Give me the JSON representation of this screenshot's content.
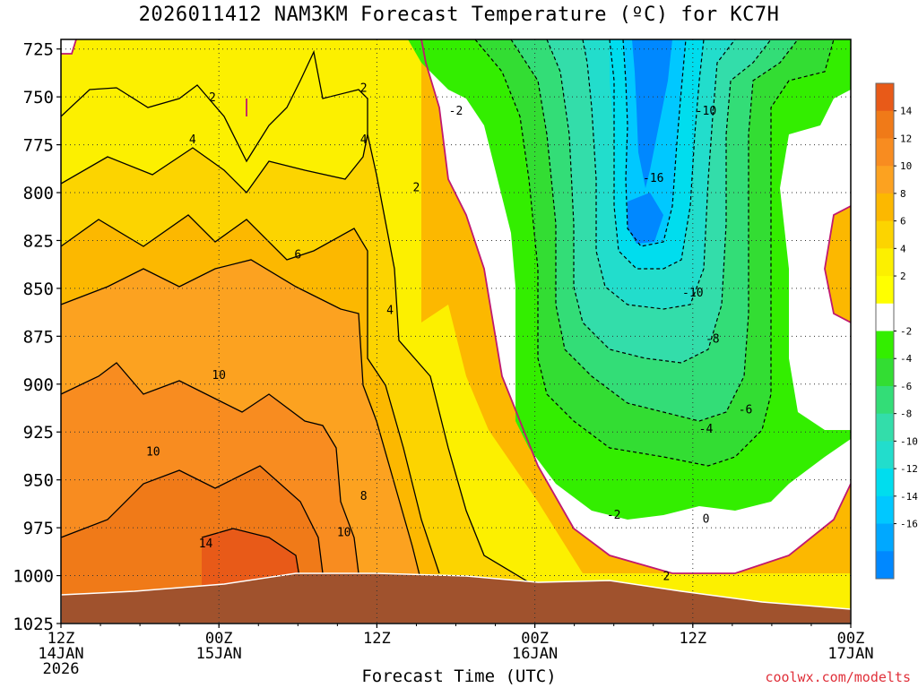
{
  "chart_data": {
    "type": "heatmap",
    "title": "2026011412 NAM3KM Forecast Temperature (ºC) for KC7H",
    "xlabel": "Forecast Time (UTC)",
    "credit": "coolwx.com/modelts",
    "y_ticks": [
      "725",
      "750",
      "775",
      "800",
      "825",
      "850",
      "875",
      "900",
      "925",
      "950",
      "975",
      "1000",
      "1025"
    ],
    "x_ticks": [
      {
        "l1": "12Z",
        "l2": "14JAN",
        "l3": "2026"
      },
      {
        "l1": "00Z",
        "l2": "15JAN",
        "l3": ""
      },
      {
        "l1": "12Z",
        "l2": "",
        "l3": ""
      },
      {
        "l1": "00Z",
        "l2": "16JAN",
        "l3": ""
      },
      {
        "l1": "12Z",
        "l2": "",
        "l3": ""
      },
      {
        "l1": "00Z",
        "l2": "17JAN",
        "l3": ""
      }
    ],
    "x_range_hours": [
      0,
      60
    ],
    "y_range_hPa": [
      720,
      1025
    ],
    "colorbar": {
      "labels": [
        "14",
        "12",
        "10",
        "8",
        "6",
        "4",
        "2",
        "-2",
        "-4",
        "-6",
        "-8",
        "-10",
        "-12",
        "-14",
        "-16"
      ],
      "colors": [
        "#e85a18",
        "#f07a18",
        "#f88c20",
        "#fca220",
        "#fcb800",
        "#fcd400",
        "#fcf000",
        "#ffff00",
        "#ffffff",
        "#33ee00",
        "#33dd33",
        "#33dd77",
        "#33ddaa",
        "#22ddcc",
        "#00ddee",
        "#00c8ff",
        "#00a8ff",
        "#0088ff"
      ]
    },
    "contour_labels": [
      {
        "t": "2",
        "h": 11.5,
        "p": 750
      },
      {
        "t": "2",
        "h": 23.0,
        "p": 745
      },
      {
        "t": "4",
        "h": 10.0,
        "p": 772
      },
      {
        "t": "4",
        "h": 23.0,
        "p": 772
      },
      {
        "t": "-2",
        "h": 30.0,
        "p": 757
      },
      {
        "t": "2",
        "h": 27.0,
        "p": 797
      },
      {
        "t": "6",
        "h": 18.0,
        "p": 832
      },
      {
        "t": "4",
        "h": 25.0,
        "p": 861
      },
      {
        "t": "10",
        "h": 12.0,
        "p": 895
      },
      {
        "t": "10",
        "h": 7.0,
        "p": 935
      },
      {
        "t": "8",
        "h": 23.0,
        "p": 958
      },
      {
        "t": "10",
        "h": 21.5,
        "p": 977
      },
      {
        "t": "14",
        "h": 11.0,
        "p": 983
      },
      {
        "t": "-16",
        "h": 45.0,
        "p": 792
      },
      {
        "t": "-10",
        "h": 49.0,
        "p": 757
      },
      {
        "t": "-10",
        "h": 48.0,
        "p": 852
      },
      {
        "t": "-8",
        "h": 49.5,
        "p": 876
      },
      {
        "t": "-6",
        "h": 52.0,
        "p": 913
      },
      {
        "t": "-4",
        "h": 49.0,
        "p": 923
      },
      {
        "t": "-2",
        "h": 42.0,
        "p": 968
      },
      {
        "t": "0",
        "h": 49.0,
        "p": 970
      },
      {
        "t": "2",
        "h": 46.0,
        "p": 1000
      }
    ]
  }
}
